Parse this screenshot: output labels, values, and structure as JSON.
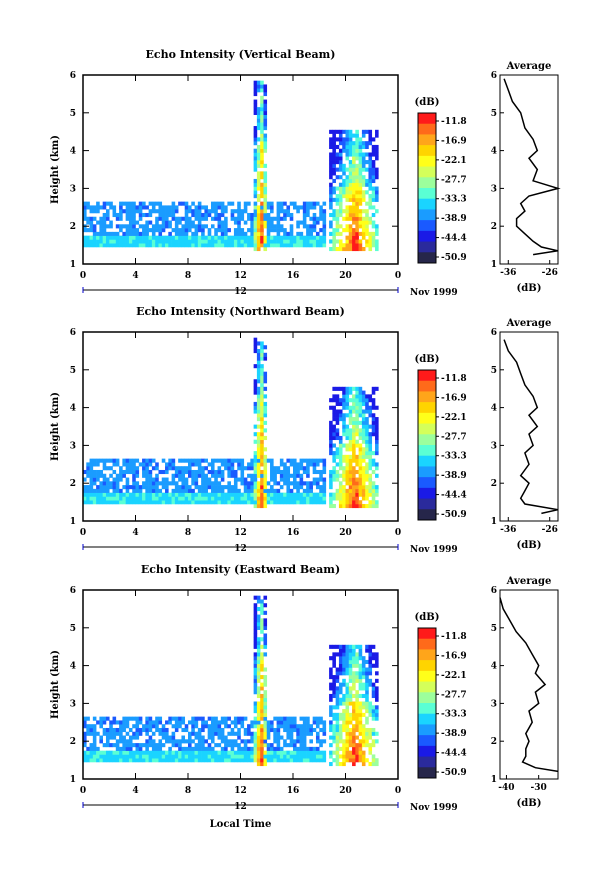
{
  "chart_data": [
    {
      "type": "heatmap",
      "title": "Echo Intensity (Vertical Beam)",
      "ylabel": "Height (km)",
      "y_ticks": [
        "1",
        "2",
        "3",
        "4",
        "5",
        "6"
      ],
      "x_ticks": [
        "0",
        "4",
        "8",
        "12",
        "16",
        "20",
        "0"
      ],
      "date_label": "12",
      "date_suffix": "Nov 1999",
      "ylim": [
        1,
        6
      ],
      "xlim": [
        0,
        24
      ],
      "colorbar": {
        "unit": "(dB)",
        "ticks": [
          "-11.8",
          "-16.9",
          "-22.1",
          "-27.7",
          "-33.3",
          "-38.9",
          "-44.4",
          "-50.9"
        ]
      },
      "profile": {
        "title": "Average",
        "xlabel": "(dB)",
        "x_ticks": [
          "-36",
          "-26"
        ],
        "xlim": [
          -38,
          -24
        ],
        "y": [
          1.25,
          1.35,
          1.45,
          1.6,
          1.8,
          2.0,
          2.2,
          2.4,
          2.6,
          2.8,
          3.0,
          3.2,
          3.5,
          3.8,
          4.0,
          4.3,
          4.6,
          5.0,
          5.3,
          5.6,
          5.9
        ],
        "x": [
          -30,
          -24,
          -28,
          -30,
          -32,
          -34,
          -34,
          -32,
          -33,
          -31,
          -24,
          -30,
          -29,
          -31,
          -29,
          -30,
          -32,
          -33,
          -35,
          -36,
          -37
        ]
      },
      "rain_bands": [
        {
          "start": 12.9,
          "end": 14.0,
          "top": 5.8,
          "core_top": 4.2
        },
        {
          "start": 18.7,
          "end": 22.5,
          "top": 4.5,
          "core_top": 3.0
        }
      ],
      "clutter_layer": {
        "bottom": 1.4,
        "top": 2.6
      }
    },
    {
      "type": "heatmap",
      "title": "Echo Intensity (Northward Beam)",
      "ylabel": "Height (km)",
      "y_ticks": [
        "1",
        "2",
        "3",
        "4",
        "5",
        "6"
      ],
      "x_ticks": [
        "0",
        "4",
        "8",
        "12",
        "16",
        "20",
        "0"
      ],
      "date_label": "12",
      "date_suffix": "Nov 1999",
      "ylim": [
        1,
        6
      ],
      "xlim": [
        0,
        24
      ],
      "colorbar": {
        "unit": "(dB)",
        "ticks": [
          "-11.8",
          "-16.9",
          "-22.1",
          "-27.7",
          "-33.3",
          "-38.9",
          "-44.4",
          "-50.9"
        ]
      },
      "profile": {
        "title": "Average",
        "xlabel": "(dB)",
        "x_ticks": [
          "-36",
          "-26"
        ],
        "xlim": [
          -38,
          -24
        ],
        "y": [
          1.2,
          1.3,
          1.45,
          1.6,
          1.8,
          2.0,
          2.2,
          2.5,
          2.8,
          3.0,
          3.3,
          3.5,
          3.8,
          4.0,
          4.3,
          4.6,
          4.9,
          5.2,
          5.5,
          5.8
        ],
        "x": [
          -28,
          -24,
          -32,
          -33,
          -32,
          -31,
          -33,
          -31,
          -32,
          -30,
          -31,
          -29,
          -31,
          -29,
          -30,
          -32,
          -33,
          -34,
          -36,
          -37
        ]
      },
      "rain_bands": [
        {
          "start": 12.9,
          "end": 14.0,
          "top": 5.8,
          "core_top": 4.2
        },
        {
          "start": 18.7,
          "end": 22.5,
          "top": 4.5,
          "core_top": 3.0
        }
      ],
      "clutter_layer": {
        "bottom": 1.4,
        "top": 2.6
      }
    },
    {
      "type": "heatmap",
      "title": "Echo Intensity (Eastward Beam)",
      "ylabel": "Height (km)",
      "xlabel": "Local Time",
      "y_ticks": [
        "1",
        "2",
        "3",
        "4",
        "5",
        "6"
      ],
      "x_ticks": [
        "0",
        "4",
        "8",
        "12",
        "16",
        "20",
        "0"
      ],
      "date_label": "12",
      "date_suffix": "Nov 1999",
      "ylim": [
        1,
        6
      ],
      "xlim": [
        0,
        24
      ],
      "colorbar": {
        "unit": "(dB)",
        "ticks": [
          "-11.8",
          "-16.9",
          "-22.1",
          "-27.7",
          "-33.3",
          "-38.9",
          "-44.4",
          "-50.9"
        ]
      },
      "profile": {
        "title": "Average",
        "xlabel": "(dB)",
        "x_ticks": [
          "-40",
          "-30"
        ],
        "xlim": [
          -42,
          -24
        ],
        "y": [
          1.2,
          1.3,
          1.45,
          1.6,
          1.8,
          2.0,
          2.2,
          2.5,
          2.8,
          3.0,
          3.3,
          3.5,
          3.8,
          4.0,
          4.3,
          4.6,
          4.9,
          5.2,
          5.5,
          5.8
        ],
        "x": [
          -24,
          -31,
          -35,
          -34,
          -34,
          -33,
          -34,
          -32,
          -33,
          -30,
          -31,
          -28,
          -31,
          -30,
          -32,
          -34,
          -37,
          -39,
          -41,
          -42
        ]
      },
      "rain_bands": [
        {
          "start": 12.9,
          "end": 14.0,
          "top": 5.8,
          "core_top": 4.2
        },
        {
          "start": 18.7,
          "end": 22.5,
          "top": 4.5,
          "core_top": 3.0
        }
      ],
      "clutter_layer": {
        "bottom": 1.4,
        "top": 2.6
      }
    }
  ],
  "colors": {
    "scale": [
      "#ff1a1a",
      "#ff6a1a",
      "#ffa51a",
      "#ffd400",
      "#ffff1a",
      "#d4ff5a",
      "#9cff9c",
      "#5affd4",
      "#1ad4ff",
      "#1a9cff",
      "#1a5aff",
      "#1a1ae6",
      "#2a2a9c",
      "#26264a"
    ]
  }
}
